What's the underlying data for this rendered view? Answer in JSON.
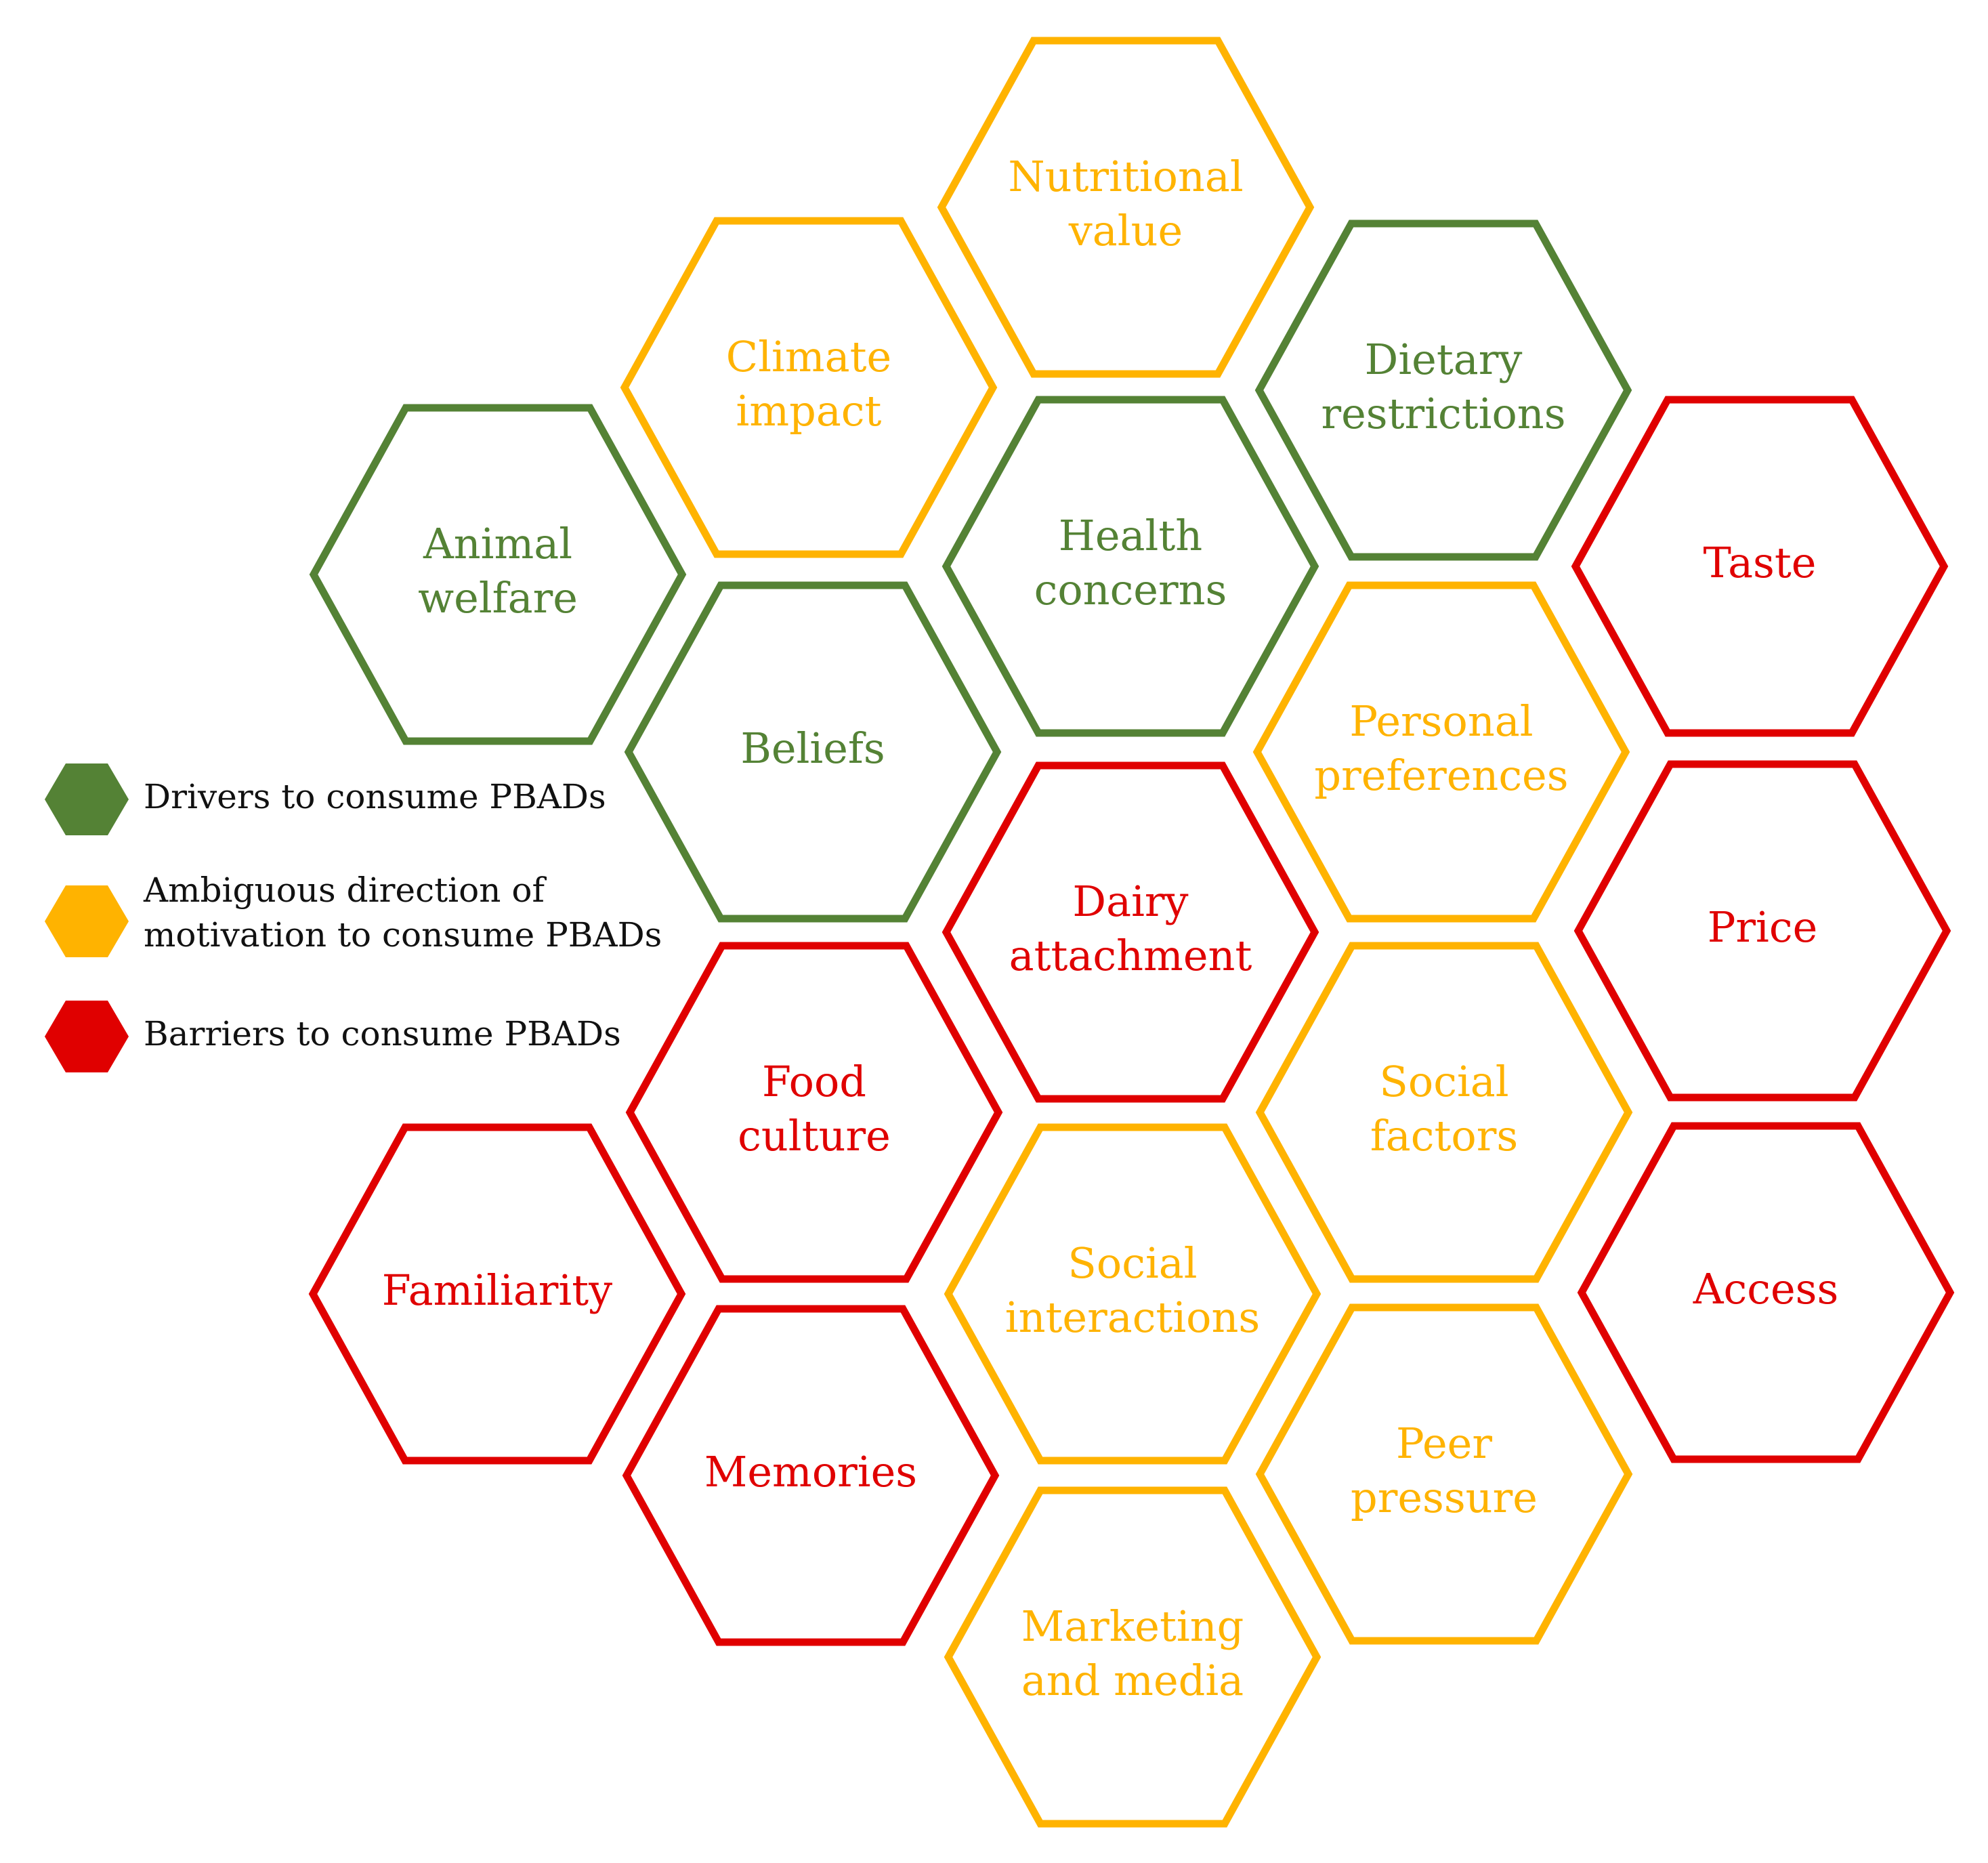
{
  "categories": {
    "driver": {
      "color": "#548235"
    },
    "ambiguous": {
      "color": "#FFB300"
    },
    "barrier": {
      "color": "#E00000"
    }
  },
  "legend": {
    "items": [
      {
        "category": "driver",
        "lines": [
          "Drivers to consume PBADs"
        ]
      },
      {
        "category": "ambiguous",
        "lines": [
          "Ambiguous direction of",
          "motivation to consume PBADs"
        ]
      },
      {
        "category": "barrier",
        "lines": [
          "Barriers to consume PBADs"
        ]
      }
    ]
  },
  "factors": [
    {
      "id": "nutritional-value",
      "lines": [
        "Nutritional",
        "value"
      ],
      "category": "ambiguous"
    },
    {
      "id": "climate-impact",
      "lines": [
        "Climate",
        "impact"
      ],
      "category": "ambiguous"
    },
    {
      "id": "dietary-restrictions",
      "lines": [
        "Dietary",
        "restrictions"
      ],
      "category": "driver"
    },
    {
      "id": "animal-welfare",
      "lines": [
        "Animal",
        "welfare"
      ],
      "category": "driver"
    },
    {
      "id": "health-concerns",
      "lines": [
        "Health",
        "concerns"
      ],
      "category": "driver"
    },
    {
      "id": "taste",
      "lines": [
        "Taste"
      ],
      "category": "barrier"
    },
    {
      "id": "beliefs",
      "lines": [
        "Beliefs"
      ],
      "category": "driver"
    },
    {
      "id": "personal-preferences",
      "lines": [
        "Personal",
        "preferences"
      ],
      "category": "ambiguous"
    },
    {
      "id": "dairy-attachment",
      "lines": [
        "Dairy",
        "attachment"
      ],
      "category": "barrier"
    },
    {
      "id": "price",
      "lines": [
        "Price"
      ],
      "category": "barrier"
    },
    {
      "id": "food-culture",
      "lines": [
        "Food",
        "culture"
      ],
      "category": "barrier"
    },
    {
      "id": "social-factors",
      "lines": [
        "Social",
        "factors"
      ],
      "category": "ambiguous"
    },
    {
      "id": "familiarity",
      "lines": [
        "Familiarity"
      ],
      "category": "barrier"
    },
    {
      "id": "social-interactions",
      "lines": [
        "Social",
        "interactions"
      ],
      "category": "ambiguous"
    },
    {
      "id": "access",
      "lines": [
        "Access"
      ],
      "category": "barrier"
    },
    {
      "id": "memories",
      "lines": [
        "Memories"
      ],
      "category": "barrier"
    },
    {
      "id": "peer-pressure",
      "lines": [
        "Peer",
        "pressure"
      ],
      "category": "ambiguous"
    },
    {
      "id": "marketing-and-media",
      "lines": [
        "Marketing",
        "and media"
      ],
      "category": "ambiguous"
    }
  ]
}
